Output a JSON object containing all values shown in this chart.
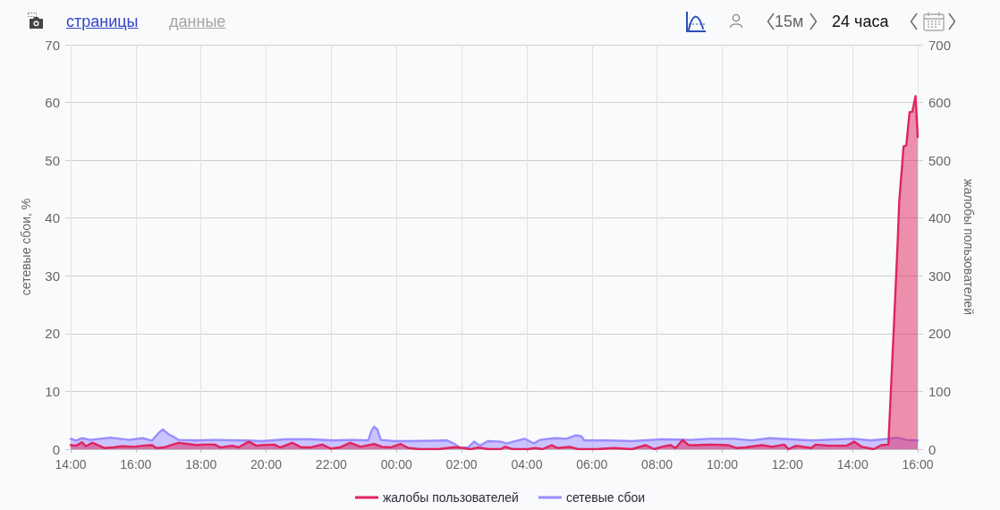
{
  "chart_data": {
    "type": "area",
    "ylabel": "сетевые сбои, %",
    "y2label": "жалобы пользователей",
    "annotations": [
      "страницы",
      "данные",
      "15м",
      "24 часа"
    ],
    "xlim": [
      "--01-01T14:00",
      "--01-02T16:00"
    ],
    "xticks": [
      {
        "value": "--01-01T14:00",
        "label": "14:00"
      },
      {
        "value": "--01-01T16:00",
        "label": "16:00"
      },
      {
        "value": "--01-01T18:00",
        "label": "18:00"
      },
      {
        "value": "--01-01T20:00",
        "label": "20:00"
      },
      {
        "value": "--01-01T22:00",
        "label": "22:00"
      },
      {
        "value": "--01-02T00:00",
        "label": "00:00"
      },
      {
        "value": "--01-02T02:00",
        "label": "02:00"
      },
      {
        "value": "--01-02T04:00",
        "label": "04:00"
      },
      {
        "value": "--01-02T06:00",
        "label": "06:00"
      },
      {
        "value": "--01-02T08:00",
        "label": "08:00"
      },
      {
        "value": "--01-02T10:00",
        "label": "10:00"
      },
      {
        "value": "--01-02T12:00",
        "label": "12:00"
      },
      {
        "value": "--01-02T14:00",
        "label": "14:00"
      },
      {
        "value": "--01-02T16:00",
        "label": "16:00"
      }
    ],
    "ylim": [
      0,
      70
    ],
    "yticks": [
      0,
      10,
      20,
      30,
      40,
      50,
      60,
      70
    ],
    "y2lim": [
      0,
      700
    ],
    "y2ticks": [
      0,
      100,
      200,
      300,
      400,
      500,
      600,
      700
    ],
    "grid": true,
    "legend": "bottom",
    "marker": "none",
    "line_style": "solid",
    "series": [
      {
        "name": "жалобы пользователей",
        "color": "#e0245e",
        "axis": "y2",
        "x": [
          "--01-01T14:00",
          "--01-01T14:10",
          "--01-01T14:21",
          "--01-01T14:28",
          "--01-01T14:40",
          "--01-01T15:02",
          "--01-01T15:19",
          "--01-01T15:35",
          "--01-01T15:57",
          "--01-01T16:13",
          "--01-01T16:30",
          "--01-01T16:38",
          "--01-01T16:52",
          "--01-01T17:08",
          "--01-01T17:19",
          "--01-01T17:36",
          "--01-01T17:52",
          "--01-01T18:04",
          "--01-01T18:25",
          "--01-01T18:36",
          "--01-01T18:58",
          "--01-01T19:09",
          "--01-01T19:28",
          "--01-01T19:42",
          "--01-01T19:53",
          "--01-01T20:15",
          "--01-01T20:26",
          "--01-01T20:48",
          "--01-01T21:05",
          "--01-01T21:21",
          "--01-01T21:43",
          "--01-01T21:59",
          "--01-01T22:16",
          "--01-01T22:35",
          "--01-01T22:54",
          "--01-01T23:19",
          "--01-01T23:33",
          "--01-01T23:49",
          "--01-02T00:08",
          "--01-02T00:22",
          "--01-02T00:44",
          "--01-02T01:17",
          "--01-02T01:44",
          "--01-02T01:56",
          "--01-02T02:17",
          "--01-02T02:30",
          "--01-02T02:50",
          "--01-02T03:12",
          "--01-02T03:20",
          "--01-02T03:34",
          "--01-02T04:02",
          "--01-02T04:16",
          "--01-02T04:29",
          "--01-02T04:46",
          "--01-02T04:57",
          "--01-02T05:19",
          "--01-02T05:35",
          "--01-02T06:08",
          "--01-02T06:41",
          "--01-02T07:14",
          "--01-02T07:39",
          "--01-02T07:55",
          "--01-02T08:09",
          "--01-02T08:25",
          "--01-02T08:34",
          "--01-02T08:47",
          "--01-02T08:58",
          "--01-02T09:15",
          "--01-02T09:37",
          "--01-02T10:10",
          "--01-02T10:26",
          "--01-02T10:43",
          "--01-02T11:13",
          "--01-02T11:32",
          "--01-02T11:54",
          "--01-02T12:02",
          "--01-02T12:16",
          "--01-02T12:44",
          "--01-02T12:52",
          "--01-02T13:16",
          "--01-02T13:49",
          "--01-02T14:03",
          "--01-02T14:17",
          "--01-02T14:39",
          "--01-02T14:53",
          "--01-02T15:06",
          "--01-02T15:16",
          "--01-02T15:23",
          "--01-02T15:26",
          "--01-02T15:34",
          "--01-02T15:39",
          "--01-02T15:45",
          "--01-02T15:50",
          "--01-02T15:56",
          "--01-02T16:00"
        ],
        "values": [
          7,
          6,
          12,
          5,
          11,
          2,
          3,
          5,
          4,
          6,
          7,
          2,
          3,
          8,
          11,
          9,
          7,
          8,
          8,
          3,
          6,
          3,
          13,
          6,
          7,
          8,
          3,
          11,
          3,
          3,
          8,
          1,
          3,
          11,
          4,
          9,
          4,
          3,
          9,
          2,
          0,
          0,
          3,
          3,
          0,
          3,
          0,
          0,
          4,
          0,
          0,
          2,
          0,
          7,
          2,
          4,
          0,
          0,
          2,
          0,
          7,
          0,
          4,
          7,
          2,
          16,
          7,
          7,
          8,
          7,
          2,
          3,
          7,
          4,
          8,
          0,
          6,
          2,
          8,
          6,
          6,
          13,
          4,
          0,
          7,
          8,
          210,
          356,
          429,
          524,
          526,
          583,
          584,
          611,
          540
        ]
      },
      {
        "name": "сетевые сбои",
        "color": "#9b8cff",
        "x": [
          "--01-01T14:00",
          "--01-01T14:10",
          "--01-01T14:21",
          "--01-01T14:36",
          "--01-01T15:13",
          "--01-01T15:48",
          "--01-01T16:12",
          "--01-01T16:30",
          "--01-01T16:43",
          "--01-01T16:50",
          "--01-01T17:00",
          "--01-01T17:08",
          "--01-01T17:19",
          "--01-01T17:52",
          "--01-01T18:25",
          "--01-01T19:20",
          "--01-01T19:53",
          "--01-01T20:36",
          "--01-01T21:21",
          "--01-01T22:05",
          "--01-01T22:38",
          "--01-01T23:08",
          "--01-01T23:14",
          "--01-01T23:19",
          "--01-01T23:25",
          "--01-01T23:31",
          "--01-01T23:55",
          "--01-02T00:28",
          "--01-02T01:34",
          "--01-02T01:47",
          "--01-02T01:58",
          "--01-02T02:12",
          "--01-02T02:23",
          "--01-02T02:34",
          "--01-02T02:48",
          "--01-02T03:12",
          "--01-02T03:23",
          "--01-02T03:56",
          "--01-02T04:13",
          "--01-02T04:24",
          "--01-02T04:51",
          "--01-02T05:13",
          "--01-02T05:30",
          "--01-02T05:41",
          "--01-02T05:46",
          "--01-02T06:30",
          "--01-02T07:14",
          "--01-02T08:09",
          "--01-02T09:04",
          "--01-02T09:37",
          "--01-02T10:20",
          "--01-02T10:54",
          "--01-02T11:27",
          "--01-02T12:44",
          "--01-02T14:01",
          "--01-02T14:34",
          "--01-02T15:06",
          "--01-02T15:23",
          "--01-02T15:39",
          "--01-02T16:00"
        ],
        "values": [
          1.8,
          1.5,
          1.9,
          1.6,
          2.0,
          1.6,
          1.9,
          1.5,
          2.9,
          3.4,
          2.6,
          2.2,
          1.6,
          1.5,
          1.6,
          1.5,
          1.4,
          1.7,
          1.7,
          1.5,
          1.6,
          1.5,
          3.2,
          3.9,
          3.4,
          1.6,
          1.4,
          1.4,
          1.5,
          0.9,
          0.2,
          0.3,
          1.3,
          0.6,
          1.4,
          1.3,
          1.0,
          1.8,
          1.0,
          1.6,
          1.9,
          1.8,
          2.4,
          2.2,
          1.5,
          1.5,
          1.4,
          1.7,
          1.6,
          1.8,
          1.8,
          1.5,
          1.9,
          1.5,
          1.8,
          1.5,
          1.8,
          2.0,
          1.6,
          1.5
        ]
      }
    ]
  }
}
